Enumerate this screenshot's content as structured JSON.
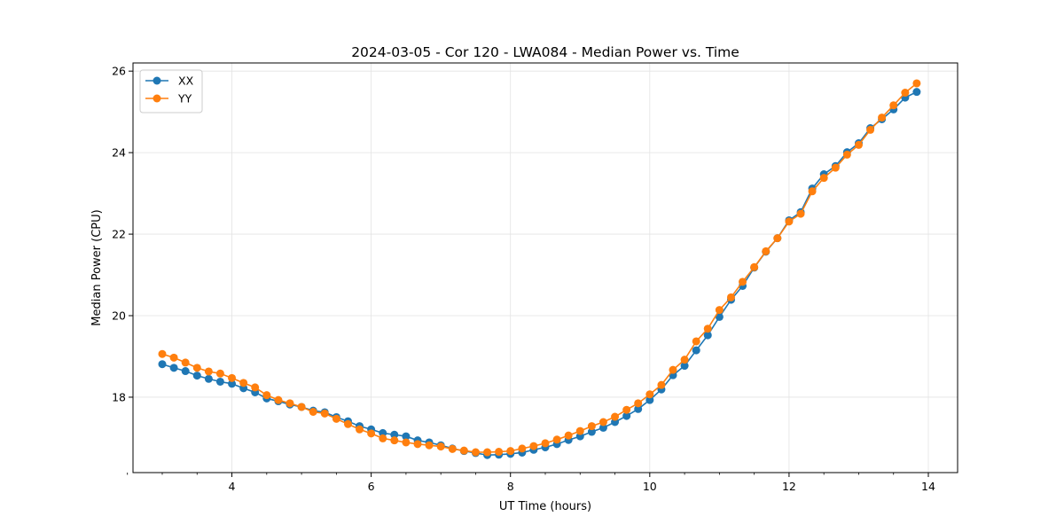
{
  "chart_data": {
    "type": "line",
    "title": "2024-03-05 - Cor 120 - LWA084 - Median Power vs. Time",
    "xlabel": "UT Time (hours)",
    "ylabel": "Median Power (CPU)",
    "xlim": [
      2.58,
      14.42
    ],
    "ylim": [
      16.15,
      26.2
    ],
    "xticks": [
      4,
      6,
      8,
      10,
      12,
      14
    ],
    "xtick_labels": [
      "4",
      "6",
      "8",
      "10",
      "12",
      "14"
    ],
    "x_minor_ticks": [
      2.5,
      3.0,
      3.5,
      4.5,
      5.0,
      5.5,
      6.5,
      7.0,
      7.5,
      8.5,
      9.0,
      9.5,
      10.5,
      11.0,
      11.5,
      12.5,
      13.0,
      13.5
    ],
    "yticks": [
      18,
      20,
      22,
      24,
      26
    ],
    "ytick_labels": [
      "18",
      "20",
      "22",
      "24",
      "26"
    ],
    "grid": true,
    "legend_position": "top-left",
    "x": [
      3.0,
      3.167,
      3.333,
      3.5,
      3.667,
      3.833,
      4.0,
      4.167,
      4.333,
      4.5,
      4.667,
      4.833,
      5.0,
      5.167,
      5.333,
      5.5,
      5.667,
      5.833,
      6.0,
      6.167,
      6.333,
      6.5,
      6.667,
      6.833,
      7.0,
      7.167,
      7.333,
      7.5,
      7.667,
      7.833,
      8.0,
      8.167,
      8.333,
      8.5,
      8.667,
      8.833,
      9.0,
      9.167,
      9.333,
      9.5,
      9.667,
      9.833,
      10.0,
      10.167,
      10.333,
      10.5,
      10.667,
      10.833,
      11.0,
      11.167,
      11.333,
      11.5,
      11.667,
      11.833,
      12.0,
      12.167,
      12.333,
      12.5,
      12.667,
      12.833,
      13.0,
      13.167,
      13.333,
      13.5,
      13.667,
      13.833
    ],
    "series": [
      {
        "name": "XX",
        "color": "#1f77b4",
        "values": [
          18.81,
          18.72,
          18.64,
          18.53,
          18.45,
          18.38,
          18.33,
          18.22,
          18.12,
          17.97,
          17.9,
          17.82,
          17.76,
          17.67,
          17.63,
          17.51,
          17.41,
          17.29,
          17.21,
          17.12,
          17.08,
          17.04,
          16.94,
          16.89,
          16.82,
          16.74,
          16.68,
          16.63,
          16.58,
          16.59,
          16.61,
          16.64,
          16.71,
          16.77,
          16.85,
          16.95,
          17.04,
          17.15,
          17.25,
          17.39,
          17.54,
          17.71,
          17.93,
          18.19,
          18.54,
          18.77,
          19.15,
          19.52,
          19.97,
          20.39,
          20.73,
          21.18,
          21.57,
          21.9,
          22.34,
          22.54,
          23.12,
          23.47,
          23.67,
          24.01,
          24.23,
          24.6,
          24.82,
          25.06,
          25.35,
          25.49
        ]
      },
      {
        "name": "YY",
        "color": "#ff7f0e",
        "values": [
          19.06,
          18.97,
          18.85,
          18.72,
          18.63,
          18.58,
          18.47,
          18.35,
          18.24,
          18.05,
          17.93,
          17.85,
          17.76,
          17.64,
          17.6,
          17.47,
          17.34,
          17.21,
          17.11,
          16.99,
          16.94,
          16.89,
          16.85,
          16.82,
          16.79,
          16.73,
          16.69,
          16.65,
          16.65,
          16.66,
          16.68,
          16.74,
          16.8,
          16.87,
          16.96,
          17.06,
          17.17,
          17.29,
          17.39,
          17.52,
          17.69,
          17.85,
          18.07,
          18.3,
          18.67,
          18.92,
          19.37,
          19.68,
          20.14,
          20.45,
          20.83,
          21.19,
          21.58,
          21.9,
          22.31,
          22.5,
          23.05,
          23.38,
          23.63,
          23.95,
          24.19,
          24.56,
          24.86,
          25.16,
          25.47,
          25.7
        ]
      }
    ]
  }
}
